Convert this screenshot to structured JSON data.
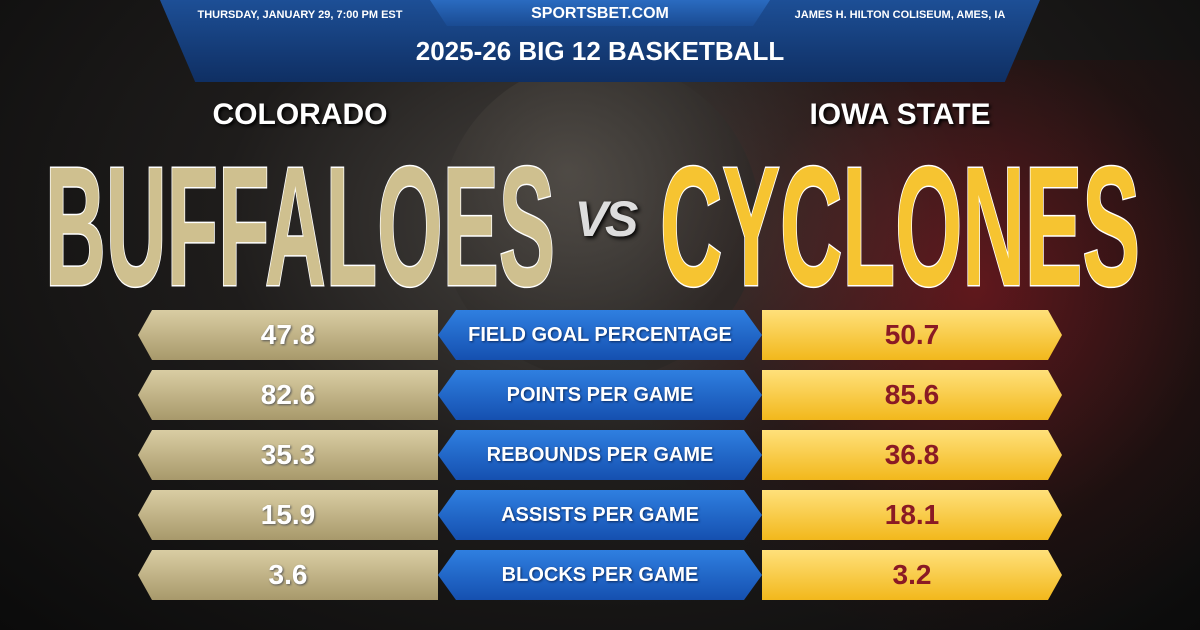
{
  "header": {
    "date": "THURSDAY, JANUARY 29, 7:00 PM EST",
    "site": "SPORTSBET.COM",
    "venue": "JAMES H. HILTON COLISEUM, AMES, IA",
    "league": "2025-26 BIG 12 BASKETBALL"
  },
  "away": {
    "city": "COLORADO",
    "name": "BUFFALOES",
    "color": "#cfc08f"
  },
  "home": {
    "city": "IOWA STATE",
    "name": "CYCLONES",
    "color": "#f6c431"
  },
  "vs": "VS",
  "stats": [
    {
      "label": "FIELD GOAL PERCENTAGE",
      "away": "47.8",
      "home": "50.7"
    },
    {
      "label": "POINTS PER GAME",
      "away": "82.6",
      "home": "85.6"
    },
    {
      "label": "REBOUNDS PER GAME",
      "away": "35.3",
      "home": "36.8"
    },
    {
      "label": "ASSISTS PER GAME",
      "away": "15.9",
      "home": "18.1"
    },
    {
      "label": "BLOCKS PER GAME",
      "away": "3.6",
      "home": "3.2"
    }
  ]
}
